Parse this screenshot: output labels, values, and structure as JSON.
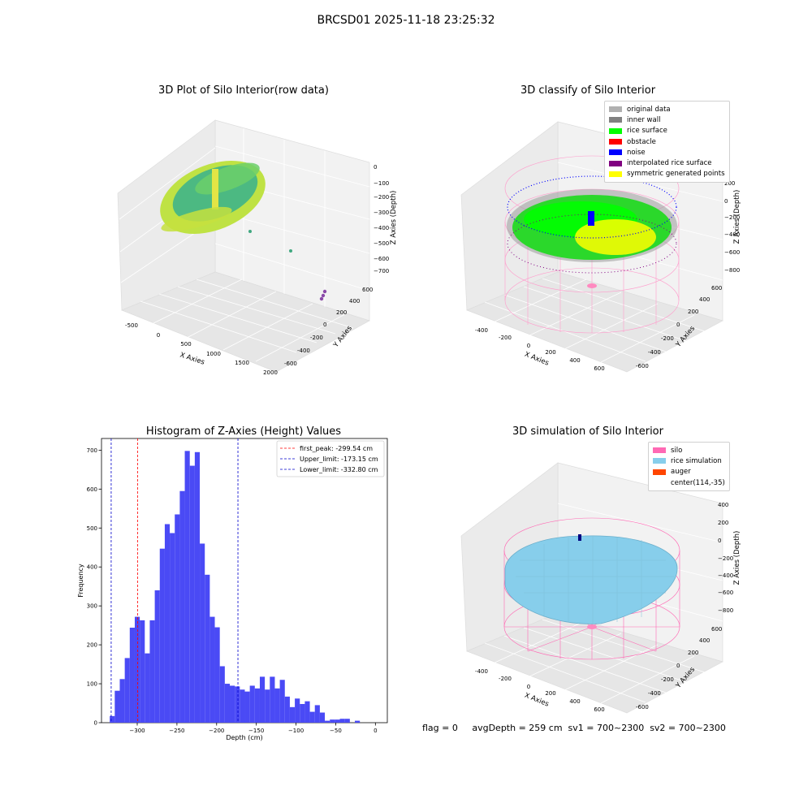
{
  "suptitle": "BRCSD01 2025-11-18 23:25:32",
  "panel1": {
    "title": "3D Plot of Silo Interior(row data)",
    "xlabel": "X Axies",
    "ylabel": "Y Axies",
    "zlabel": "Z Axies (Depth)",
    "x_ticks": [
      "-500",
      "0",
      "500",
      "1000",
      "1500",
      "2000"
    ],
    "y_ticks": [
      "-600",
      "-400",
      "-200",
      "0",
      "200",
      "400",
      "600"
    ],
    "z_ticks": [
      "0",
      "−100",
      "−200",
      "−300",
      "−400",
      "−500",
      "−600",
      "−700"
    ]
  },
  "panel2": {
    "title": "3D classify of Silo Interior",
    "xlabel": "X Axies",
    "ylabel": "Y Axies",
    "zlabel": "Z Axies (Depth)",
    "x_ticks": [
      "-400",
      "-200",
      "0",
      "200",
      "400",
      "600"
    ],
    "y_ticks": [
      "-600",
      "-400",
      "-200",
      "0",
      "200",
      "400",
      "600"
    ],
    "z_ticks": [
      "200",
      "0",
      "−200",
      "−400",
      "−600",
      "−800"
    ],
    "legend": [
      {
        "label": "original data",
        "color": "#b0b0b0"
      },
      {
        "label": "inner wall",
        "color": "#808080"
      },
      {
        "label": "rice surface",
        "color": "#00ff00"
      },
      {
        "label": "obstacle",
        "color": "#ff0000"
      },
      {
        "label": "noise",
        "color": "#0000ff"
      },
      {
        "label": "interpolated rice surface",
        "color": "#800080"
      },
      {
        "label": "symmetric generated points",
        "color": "#ffff00"
      }
    ]
  },
  "panel4": {
    "title": "3D simulation of Silo Interior",
    "xlabel": "X Axies",
    "ylabel": "Y Axies",
    "zlabel": "Z Axies (Depth)",
    "x_ticks": [
      "-400",
      "-200",
      "0",
      "200",
      "400",
      "600"
    ],
    "y_ticks": [
      "-600",
      "-400",
      "-200",
      "0",
      "200",
      "400",
      "600"
    ],
    "z_ticks": [
      "400",
      "200",
      "0",
      "−200",
      "−400",
      "−600",
      "−800"
    ],
    "legend": [
      {
        "label": "silo",
        "color": "#ff69b4"
      },
      {
        "label": "rice simulation",
        "color": "#87ceeb"
      },
      {
        "label": "auger",
        "color": "#ff4500"
      },
      {
        "label": "center(114,-35)",
        "color": ""
      }
    ]
  },
  "footer": "flag = 0     avgDepth = 259 cm  sv1 = 700~2300  sv2 = 700~2300",
  "chart_data": [
    {
      "type": "bar",
      "title": "Histogram of Z-Axies (Height) Values",
      "xlabel": "Depth (cm)",
      "ylabel": "Frequency",
      "bin_width": 6.3,
      "bin_start": -334.6,
      "values": [
        17,
        82,
        112,
        166,
        244,
        272,
        263,
        178,
        263,
        340,
        447,
        510,
        487,
        535,
        595,
        698,
        660,
        695,
        460,
        380,
        272,
        245,
        145,
        100,
        95,
        93,
        85,
        80,
        95,
        88,
        118,
        85,
        118,
        88,
        110,
        67,
        40,
        62,
        48,
        55,
        28,
        45,
        26,
        5,
        8,
        8,
        10,
        10,
        0,
        5
      ],
      "xlim": [
        -345,
        15
      ],
      "ylim": [
        0,
        730
      ],
      "x_ticks": [
        -300,
        -250,
        -200,
        -150,
        -100,
        -50,
        0
      ],
      "x_tick_labels": [
        "−300",
        "−250",
        "−200",
        "−150",
        "−100",
        "−50",
        "0"
      ],
      "y_ticks": [
        0,
        100,
        200,
        300,
        400,
        500,
        600,
        700
      ],
      "color": "#4a4af5",
      "lines": [
        {
          "label": "first_peak: -299.54 cm",
          "x": -299.54,
          "color": "#ff0000"
        },
        {
          "label": "Upper_limit: -173.15 cm",
          "x": -173.15,
          "color": "#0000cc"
        },
        {
          "label": "Lower_limit: -332.80 cm",
          "x": -332.8,
          "color": "#0000cc"
        }
      ],
      "legend_position": "upper right"
    }
  ]
}
